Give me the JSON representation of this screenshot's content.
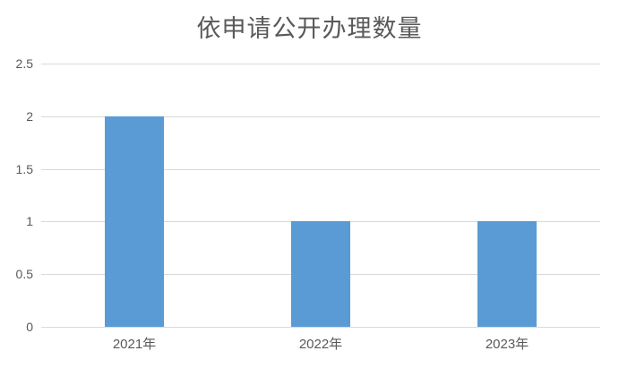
{
  "chart_data": {
    "type": "bar",
    "title": "依申请公开办理数量",
    "categories": [
      "2021年",
      "2022年",
      "2023年"
    ],
    "values": [
      2,
      1,
      1
    ],
    "xlabel": "",
    "ylabel": "",
    "ylim": [
      0,
      2.5
    ],
    "yticks": [
      0,
      0.5,
      1,
      1.5,
      2,
      2.5
    ],
    "grid": true,
    "legend": "none",
    "colors": {
      "bar": "#5b9bd5",
      "gridline": "#d9d9d9",
      "axis_text": "#595959",
      "title_text": "#595959",
      "background": "#ffffff"
    }
  }
}
